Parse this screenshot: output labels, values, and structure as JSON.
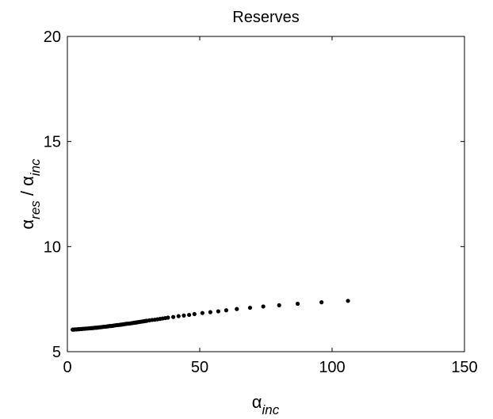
{
  "chart_data": {
    "type": "scatter",
    "title": "Reserves",
    "xlabel": {
      "base": "α",
      "sub": "inc"
    },
    "ylabel": {
      "base": "α",
      "sub1": "res",
      "sep": " / ",
      "base2": "α",
      "sub2": "inc"
    },
    "xlim": [
      0,
      150
    ],
    "ylim": [
      5,
      20
    ],
    "xticks": [
      0,
      50,
      100,
      150
    ],
    "yticks": [
      5,
      10,
      15,
      20
    ],
    "xtick_labels": [
      "0",
      "50",
      "100",
      "150"
    ],
    "ytick_labels": [
      "5",
      "10",
      "15",
      "20"
    ],
    "grid": false,
    "legend": "none",
    "marker_color": "#000000",
    "series": [
      {
        "x": [
          2,
          2.5,
          3,
          3.5,
          4,
          4.5,
          5,
          5.5,
          6,
          6.5,
          7,
          7.5,
          8,
          8.5,
          9,
          9.5,
          10,
          10.5,
          11,
          11.5,
          12,
          12.5,
          13,
          13.5,
          14,
          14.5,
          15,
          15.5,
          16,
          16.5,
          17,
          17.5,
          18,
          18.5,
          19,
          19.5,
          20,
          20.5,
          21,
          21.5,
          22,
          22.5,
          23,
          23.5,
          24,
          24.5,
          25,
          25.5,
          26,
          26.5,
          27,
          27.5,
          28,
          28.5,
          29,
          29.5,
          30,
          31,
          32,
          33,
          34,
          35,
          36,
          37,
          38,
          40,
          42,
          44,
          46,
          48,
          51,
          54,
          57,
          60,
          64,
          69,
          74,
          80,
          87,
          96,
          106
        ],
        "y": [
          6.05,
          6.05,
          6.06,
          6.06,
          6.07,
          6.07,
          6.08,
          6.08,
          6.09,
          6.09,
          6.1,
          6.1,
          6.11,
          6.11,
          6.12,
          6.12,
          6.13,
          6.14,
          6.14,
          6.15,
          6.16,
          6.16,
          6.17,
          6.18,
          6.19,
          6.19,
          6.2,
          6.21,
          6.22,
          6.22,
          6.23,
          6.24,
          6.25,
          6.26,
          6.27,
          6.27,
          6.28,
          6.29,
          6.3,
          6.31,
          6.32,
          6.33,
          6.33,
          6.34,
          6.35,
          6.36,
          6.37,
          6.38,
          6.39,
          6.4,
          6.41,
          6.42,
          6.43,
          6.44,
          6.45,
          6.46,
          6.47,
          6.49,
          6.51,
          6.52,
          6.54,
          6.56,
          6.58,
          6.6,
          6.62,
          6.65,
          6.69,
          6.72,
          6.75,
          6.79,
          6.84,
          6.88,
          6.92,
          6.97,
          7.03,
          7.09,
          7.15,
          7.21,
          7.28,
          7.35,
          7.42
        ]
      }
    ]
  }
}
